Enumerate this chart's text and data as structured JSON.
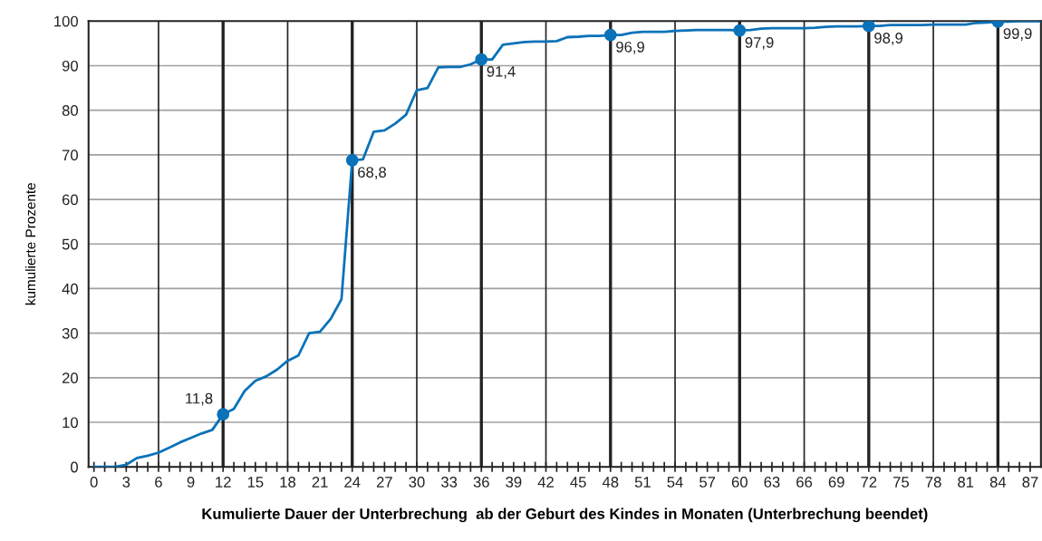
{
  "chart_data": {
    "type": "line",
    "xlabel": "Kumulierte Dauer der Unterbrechung  ab der Geburt des Kindes in Monaten (Unterbrechung beendet)",
    "ylabel": "kumulierte Prozente",
    "series": [
      {
        "color": "#0a72b9",
        "marker": "none",
        "x": [
          0,
          1,
          2,
          3,
          4,
          5,
          6,
          7,
          8,
          9,
          10,
          11,
          12,
          13,
          14,
          15,
          16,
          17,
          18,
          19,
          20,
          21,
          22,
          23,
          24,
          25,
          26,
          27,
          28,
          29,
          30,
          31,
          32,
          33,
          34,
          35,
          36,
          37,
          38,
          39,
          40,
          41,
          42,
          43,
          44,
          45,
          46,
          47,
          48,
          49,
          50,
          51,
          52,
          53,
          54,
          55,
          56,
          57,
          58,
          59,
          60,
          61,
          62,
          63,
          64,
          65,
          66,
          67,
          68,
          69,
          70,
          71,
          72,
          73,
          74,
          75,
          76,
          77,
          78,
          79,
          80,
          81,
          82,
          83,
          84,
          85,
          86,
          87,
          88
        ],
        "values": [
          0,
          0,
          0,
          0.5,
          2,
          2.5,
          3.2,
          4.3,
          5.5,
          6.5,
          7.5,
          8.3,
          11.8,
          13,
          17,
          19.3,
          20.3,
          21.8,
          23.8,
          25,
          30,
          30.3,
          33.2,
          37.6,
          68.8,
          69,
          75.2,
          75.5,
          77,
          79,
          84.5,
          85,
          89.6,
          89.7,
          89.7,
          90.3,
          91.4,
          91.4,
          94.7,
          95,
          95.3,
          95.4,
          95.4,
          95.5,
          96.4,
          96.5,
          96.7,
          96.7,
          96.9,
          96.9,
          97.4,
          97.6,
          97.6,
          97.6,
          97.8,
          97.9,
          98,
          98,
          98,
          98,
          97.9,
          98,
          98.3,
          98.4,
          98.4,
          98.4,
          98.4,
          98.5,
          98.7,
          98.8,
          98.8,
          98.8,
          98.9,
          98.9,
          99.1,
          99.1,
          99.1,
          99.1,
          99.2,
          99.2,
          99.2,
          99.2,
          99.6,
          99.7,
          99.9,
          99.9,
          100,
          100,
          100
        ]
      },
      {
        "type": "scatter",
        "color": "#0a72b9",
        "marker": "circle",
        "x": [
          12,
          24,
          36,
          48,
          60,
          72,
          84
        ],
        "values": [
          11.8,
          68.8,
          91.4,
          96.9,
          97.9,
          98.9,
          99.9
        ],
        "value_labels": [
          "11,8",
          "68,8",
          "91,4",
          "96,9",
          "97,9",
          "98,9",
          "99,9"
        ]
      }
    ],
    "xlim": [
      -0.5,
      88
    ],
    "xticks": [
      0,
      {
        "value": 1,
        "label": null
      },
      {
        "value": 2,
        "label": null
      },
      3,
      {
        "value": 4,
        "label": null
      },
      {
        "value": 5,
        "label": null
      },
      6,
      {
        "value": 7,
        "label": null
      },
      {
        "value": 8,
        "label": null
      },
      9,
      {
        "value": 10,
        "label": null
      },
      {
        "value": 11,
        "label": null
      },
      12,
      {
        "value": 13,
        "label": null
      },
      {
        "value": 14,
        "label": null
      },
      15,
      {
        "value": 16,
        "label": null
      },
      {
        "value": 17,
        "label": null
      },
      18,
      {
        "value": 19,
        "label": null
      },
      {
        "value": 20,
        "label": null
      },
      21,
      {
        "value": 22,
        "label": null
      },
      {
        "value": 23,
        "label": null
      },
      24,
      {
        "value": 25,
        "label": null
      },
      {
        "value": 26,
        "label": null
      },
      27,
      {
        "value": 28,
        "label": null
      },
      {
        "value": 29,
        "label": null
      },
      30,
      {
        "value": 31,
        "label": null
      },
      {
        "value": 32,
        "label": null
      },
      33,
      {
        "value": 34,
        "label": null
      },
      {
        "value": 35,
        "label": null
      },
      36,
      {
        "value": 37,
        "label": null
      },
      {
        "value": 38,
        "label": null
      },
      39,
      {
        "value": 40,
        "label": null
      },
      {
        "value": 41,
        "label": null
      },
      42,
      {
        "value": 43,
        "label": null
      },
      {
        "value": 44,
        "label": null
      },
      45,
      {
        "value": 46,
        "label": null
      },
      {
        "value": 47,
        "label": null
      },
      48,
      {
        "value": 49,
        "label": null
      },
      {
        "value": 50,
        "label": null
      },
      51,
      {
        "value": 52,
        "label": null
      },
      {
        "value": 53,
        "label": null
      },
      54,
      {
        "value": 55,
        "label": null
      },
      {
        "value": 56,
        "label": null
      },
      57,
      {
        "value": 58,
        "label": null
      },
      {
        "value": 59,
        "label": null
      },
      60,
      {
        "value": 61,
        "label": null
      },
      {
        "value": 62,
        "label": null
      },
      63,
      {
        "value": 64,
        "label": null
      },
      {
        "value": 65,
        "label": null
      },
      66,
      {
        "value": 67,
        "label": null
      },
      {
        "value": 68,
        "label": null
      },
      69,
      {
        "value": 70,
        "label": null
      },
      {
        "value": 71,
        "label": null
      },
      72,
      {
        "value": 73,
        "label": null
      },
      {
        "value": 74,
        "label": null
      },
      75,
      {
        "value": 76,
        "label": null
      },
      {
        "value": 77,
        "label": null
      },
      78,
      {
        "value": 79,
        "label": null
      },
      {
        "value": 80,
        "label": null
      },
      81,
      {
        "value": 82,
        "label": null
      },
      {
        "value": 83,
        "label": null
      },
      84,
      {
        "value": 85,
        "label": null
      },
      {
        "value": 86,
        "label": null
      },
      87
    ],
    "ylim": [
      0,
      100
    ],
    "yticks": [
      0,
      10,
      20,
      30,
      40,
      50,
      60,
      70,
      80,
      90,
      100
    ],
    "grid": "y",
    "ref_lines": [
      {
        "axis": "x",
        "value": 6,
        "color": "#222222"
      },
      {
        "axis": "x",
        "value": 12,
        "color": "#222222"
      },
      {
        "axis": "x",
        "value": 18,
        "color": "#222222"
      },
      {
        "axis": "x",
        "value": 24,
        "color": "#222222"
      },
      {
        "axis": "x",
        "value": 30,
        "color": "#222222"
      },
      {
        "axis": "x",
        "value": 36,
        "color": "#222222"
      },
      {
        "axis": "x",
        "value": 42,
        "color": "#222222"
      },
      {
        "axis": "x",
        "value": 48,
        "color": "#222222"
      },
      {
        "axis": "x",
        "value": 54,
        "color": "#222222"
      },
      {
        "axis": "x",
        "value": 60,
        "color": "#222222"
      },
      {
        "axis": "x",
        "value": 66,
        "color": "#222222"
      },
      {
        "axis": "x",
        "value": 72,
        "color": "#222222"
      },
      {
        "axis": "x",
        "value": 78,
        "color": "#222222"
      },
      {
        "axis": "x",
        "value": 84,
        "color": "#222222"
      }
    ],
    "legend": false
  }
}
